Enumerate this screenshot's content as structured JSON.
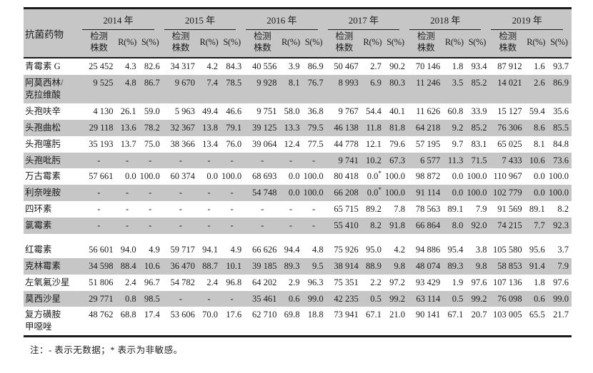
{
  "colors": {
    "shaded_row": "#c6c6c6",
    "header_bg": "#c6c6c6",
    "rule": "#1a1a1a"
  },
  "page": {
    "note": "注：- 表示无数据；* 表示为非敏感。"
  },
  "table": {
    "drug_header": "抗菌药物",
    "years": [
      "2014 年",
      "2015 年",
      "2016 年",
      "2017 年",
      "2018 年",
      "2019 年"
    ],
    "subheaders": {
      "count": "检测\n株数",
      "r": "R(%)",
      "s": "S(%)"
    },
    "rows": [
      {
        "drug": "青霉素 G",
        "shaded": false,
        "gap_before": false,
        "cells": [
          [
            "25 452",
            "4.3",
            "82.6"
          ],
          [
            "34 317",
            "4.2",
            "84.3"
          ],
          [
            "40 556",
            "3.9",
            "86.9"
          ],
          [
            "50 467",
            "2.7",
            "90.2"
          ],
          [
            "70 146",
            "1.8",
            "93.4"
          ],
          [
            "87 912",
            "1.6",
            "93.7"
          ]
        ]
      },
      {
        "drug": "阿莫西林/\n克拉维酸",
        "shaded": true,
        "gap_before": false,
        "cells": [
          [
            "9 525",
            "4.8",
            "86.7"
          ],
          [
            "9 670",
            "7.4",
            "78.5"
          ],
          [
            "9 928",
            "8.1",
            "76.7"
          ],
          [
            "8 993",
            "6.9",
            "80.3"
          ],
          [
            "11 246",
            "3.5",
            "85.2"
          ],
          [
            "14 021",
            "2.6",
            "86.9"
          ]
        ]
      },
      {
        "drug": "头孢呋辛",
        "shaded": false,
        "gap_before": false,
        "cells": [
          [
            "4 130",
            "26.1",
            "59.0"
          ],
          [
            "5 963",
            "49.4",
            "46.6"
          ],
          [
            "9 751",
            "58.0",
            "36.8"
          ],
          [
            "9 767",
            "54.4",
            "40.1"
          ],
          [
            "11 626",
            "60.8",
            "33.9"
          ],
          [
            "15 127",
            "59.4",
            "35.6"
          ]
        ]
      },
      {
        "drug": "头孢曲松",
        "shaded": true,
        "gap_before": false,
        "cells": [
          [
            "29 118",
            "13.6",
            "78.2"
          ],
          [
            "32 367",
            "13.8",
            "79.1"
          ],
          [
            "39 125",
            "13.3",
            "79.5"
          ],
          [
            "46 138",
            "11.8",
            "81.8"
          ],
          [
            "64 218",
            "9.2",
            "85.2"
          ],
          [
            "76 306",
            "8.6",
            "85.5"
          ]
        ]
      },
      {
        "drug": "头孢噻肟",
        "shaded": false,
        "gap_before": false,
        "cells": [
          [
            "35 193",
            "13.7",
            "75.0"
          ],
          [
            "38 366",
            "13.4",
            "76.0"
          ],
          [
            "39 064",
            "12.4",
            "77.5"
          ],
          [
            "44 778",
            "12.1",
            "79.6"
          ],
          [
            "57 195",
            "9.7",
            "83.1"
          ],
          [
            "65 025",
            "8.1",
            "84.8"
          ]
        ]
      },
      {
        "drug": "头孢吡肟",
        "shaded": true,
        "gap_before": false,
        "cells": [
          [
            "-",
            "-",
            "-"
          ],
          [
            "-",
            "-",
            "-"
          ],
          [
            "-",
            "-",
            "-"
          ],
          [
            "9 741",
            "10.2",
            "67.3"
          ],
          [
            "6 577",
            "11.3",
            "71.5"
          ],
          [
            "7 433",
            "10.6",
            "73.6"
          ]
        ]
      },
      {
        "drug": "万古霉素",
        "shaded": false,
        "gap_before": false,
        "cells": [
          [
            "57 661",
            "0.0",
            "100.0"
          ],
          [
            "60 374",
            "0.0",
            "100.0"
          ],
          [
            "68 693",
            "0.0",
            "100.0"
          ],
          [
            "80 418",
            "0.0*",
            "100.0"
          ],
          [
            "98 872",
            "0.0",
            "100.0"
          ],
          [
            "110 967",
            "0.0",
            "100.0"
          ]
        ]
      },
      {
        "drug": "利奈唑胺",
        "shaded": true,
        "gap_before": false,
        "cells": [
          [
            "-",
            "-",
            "-"
          ],
          [
            "-",
            "-",
            "-"
          ],
          [
            "54 748",
            "0.0",
            "100.0"
          ],
          [
            "66 208",
            "0.0*",
            "100.0"
          ],
          [
            "91 114",
            "0.0",
            "100.0"
          ],
          [
            "102 779",
            "0.0",
            "100.0"
          ]
        ]
      },
      {
        "drug": "四环素",
        "shaded": false,
        "gap_before": false,
        "cells": [
          [
            "-",
            "-",
            "-"
          ],
          [
            "-",
            "-",
            "-"
          ],
          [
            "-",
            "-",
            "-"
          ],
          [
            "65 715",
            "89.2",
            "7.8"
          ],
          [
            "78 563",
            "89.1",
            "7.9"
          ],
          [
            "91 569",
            "89.1",
            "8.2"
          ]
        ]
      },
      {
        "drug": "氯霉素",
        "shaded": true,
        "gap_before": false,
        "cells": [
          [
            "-",
            "-",
            "-"
          ],
          [
            "-",
            "-",
            "-"
          ],
          [
            "-",
            "-",
            "-"
          ],
          [
            "55 410",
            "8.2",
            "91.8"
          ],
          [
            "66 864",
            "8.0",
            "92.0"
          ],
          [
            "74 215",
            "7.7",
            "92.3"
          ]
        ]
      },
      {
        "drug": "红霉素",
        "shaded": false,
        "gap_before": true,
        "cells": [
          [
            "56 601",
            "94.0",
            "4.9"
          ],
          [
            "59 717",
            "94.1",
            "4.9"
          ],
          [
            "66 626",
            "94.4",
            "4.8"
          ],
          [
            "75 926",
            "95.0",
            "4.2"
          ],
          [
            "94 886",
            "95.4",
            "3.8"
          ],
          [
            "105 580",
            "95.6",
            "3.7"
          ]
        ]
      },
      {
        "drug": "克林霉素",
        "shaded": true,
        "gap_before": false,
        "cells": [
          [
            "34 598",
            "88.4",
            "10.6"
          ],
          [
            "36 470",
            "88.7",
            "10.1"
          ],
          [
            "39 185",
            "89.3",
            "9.5"
          ],
          [
            "38 914",
            "88.9",
            "9.8"
          ],
          [
            "48 074",
            "89.3",
            "9.8"
          ],
          [
            "58 853",
            "91.4",
            "7.9"
          ]
        ]
      },
      {
        "drug": "左氧氟沙星",
        "shaded": false,
        "gap_before": false,
        "cells": [
          [
            "51 806",
            "2.4",
            "96.7"
          ],
          [
            "54 782",
            "2.4",
            "96.8"
          ],
          [
            "64 202",
            "2.9",
            "96.3"
          ],
          [
            "75 351",
            "2.2",
            "97.2"
          ],
          [
            "93 429",
            "1.9",
            "97.6"
          ],
          [
            "107 136",
            "1.8",
            "97.6"
          ]
        ]
      },
      {
        "drug": "莫西沙星",
        "shaded": true,
        "gap_before": false,
        "cells": [
          [
            "29 771",
            "0.8",
            "98.5"
          ],
          [
            "-",
            "-",
            "-"
          ],
          [
            "35 461",
            "0.6",
            "99.0"
          ],
          [
            "42 235",
            "0.5",
            "99.2"
          ],
          [
            "63 114",
            "0.5",
            "99.2"
          ],
          [
            "76 098",
            "0.6",
            "99.0"
          ]
        ]
      },
      {
        "drug": "复方磺胺\n甲噁唑",
        "shaded": false,
        "gap_before": false,
        "cells": [
          [
            "48 762",
            "68.8",
            "17.4"
          ],
          [
            "53 606",
            "70.0",
            "17.6"
          ],
          [
            "62 710",
            "69.8",
            "18.8"
          ],
          [
            "73 941",
            "67.1",
            "21.0"
          ],
          [
            "90 141",
            "67.1",
            "20.7"
          ],
          [
            "103 005",
            "65.5",
            "21.7"
          ]
        ]
      }
    ]
  }
}
